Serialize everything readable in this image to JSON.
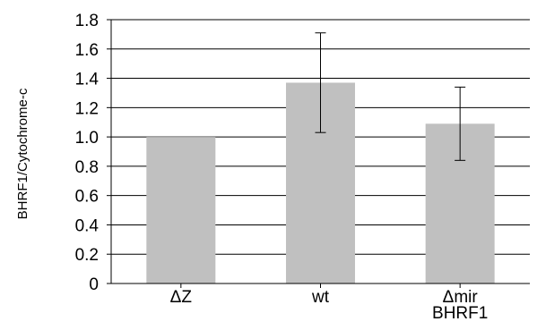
{
  "chart_data": {
    "type": "bar",
    "categories": [
      [
        "ΔZ"
      ],
      [
        "wt"
      ],
      [
        "Δmir",
        "BHRF1"
      ]
    ],
    "values": [
      1.0,
      1.37,
      1.09
    ],
    "error_bars": [
      null,
      [
        1.03,
        1.71
      ],
      [
        0.84,
        1.34
      ]
    ],
    "ylabel": "BHRF1/Cytochrome-c",
    "xlabel": "",
    "title": "",
    "ylim": [
      0,
      1.8
    ],
    "yticks": [
      "0",
      "0.2",
      "0.4",
      "0.6",
      "0.8",
      "1.0",
      "1.2",
      "1.4",
      "1.6",
      "1.8"
    ],
    "grid": "horizontal",
    "bar_color": "#c0c0c0",
    "legend": "none"
  }
}
